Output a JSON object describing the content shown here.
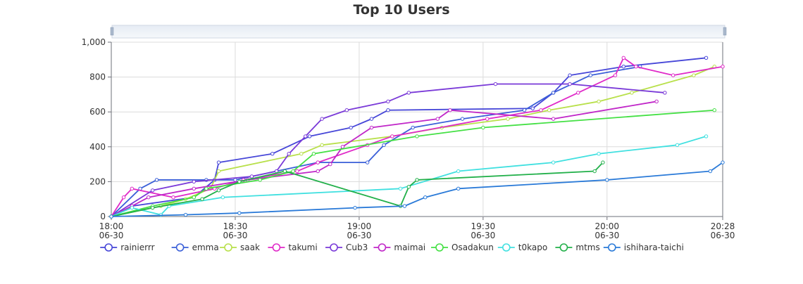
{
  "chart_data": {
    "type": "line",
    "title": "Top 10 Users",
    "xlabel": "",
    "ylabel": "",
    "ylim": [
      0,
      1000
    ],
    "xlim": [
      "06-30 18:00",
      "06-30 20:28"
    ],
    "grid": true,
    "legend_position": "bottom",
    "y_ticks": [
      "0",
      "200",
      "400",
      "600",
      "800",
      "1,000"
    ],
    "x_ticks": [
      {
        "time": "18:00",
        "date": "06-30"
      },
      {
        "time": "18:30",
        "date": "06-30"
      },
      {
        "time": "19:00",
        "date": "06-30"
      },
      {
        "time": "19:30",
        "date": "06-30"
      },
      {
        "time": "20:00",
        "date": "06-30"
      },
      {
        "time": "20:28",
        "date": "06-30"
      }
    ],
    "series": [
      {
        "name": "rainierrr",
        "color": "#4646d8",
        "points": [
          [
            "18:00",
            0
          ],
          [
            "18:05",
            60
          ],
          [
            "18:20",
            110
          ],
          [
            "18:25",
            210
          ],
          [
            "18:26",
            310
          ],
          [
            "18:39",
            360
          ],
          [
            "18:48",
            460
          ],
          [
            "18:58",
            510
          ],
          [
            "19:03",
            560
          ],
          [
            "19:07",
            610
          ],
          [
            "19:42",
            620
          ],
          [
            "19:47",
            710
          ],
          [
            "19:51",
            810
          ],
          [
            "20:04",
            860
          ],
          [
            "20:24",
            910
          ]
        ]
      },
      {
        "name": "emma",
        "color": "#3a5fd8",
        "points": [
          [
            "18:00",
            0
          ],
          [
            "18:07",
            160
          ],
          [
            "18:11",
            210
          ],
          [
            "18:23",
            210
          ],
          [
            "18:30",
            210
          ],
          [
            "18:40",
            260
          ],
          [
            "18:50",
            310
          ],
          [
            "19:02",
            310
          ],
          [
            "19:06",
            410
          ],
          [
            "19:13",
            510
          ],
          [
            "19:25",
            560
          ],
          [
            "19:40",
            610
          ],
          [
            "19:47",
            710
          ],
          [
            "19:56",
            810
          ],
          [
            "20:08",
            860
          ]
        ]
      },
      {
        "name": "saak",
        "color": "#b8e04a",
        "points": [
          [
            "18:00",
            0
          ],
          [
            "18:12",
            60
          ],
          [
            "18:18",
            100
          ],
          [
            "18:24",
            160
          ],
          [
            "18:26",
            260
          ],
          [
            "18:46",
            360
          ],
          [
            "18:51",
            410
          ],
          [
            "19:08",
            460
          ],
          [
            "19:20",
            510
          ],
          [
            "19:36",
            560
          ],
          [
            "19:46",
            610
          ],
          [
            "19:58",
            660
          ],
          [
            "20:06",
            710
          ],
          [
            "20:21",
            810
          ],
          [
            "20:26",
            860
          ]
        ]
      },
      {
        "name": "takumi",
        "color": "#e02ac8",
        "points": [
          [
            "18:00",
            0
          ],
          [
            "18:03",
            110
          ],
          [
            "18:05",
            160
          ],
          [
            "18:15",
            110
          ],
          [
            "18:25",
            160
          ],
          [
            "18:32",
            210
          ],
          [
            "18:45",
            260
          ],
          [
            "18:50",
            310
          ],
          [
            "19:02",
            410
          ],
          [
            "19:08",
            460
          ],
          [
            "19:31",
            560
          ],
          [
            "19:44",
            610
          ],
          [
            "19:53",
            710
          ],
          [
            "20:02",
            810
          ],
          [
            "20:04",
            910
          ],
          [
            "20:07",
            860
          ],
          [
            "20:16",
            810
          ],
          [
            "20:28",
            860
          ]
        ]
      },
      {
        "name": "Cub3",
        "color": "#7a3ad8",
        "points": [
          [
            "18:00",
            0
          ],
          [
            "18:10",
            150
          ],
          [
            "18:20",
            200
          ],
          [
            "18:34",
            230
          ],
          [
            "18:40",
            260
          ],
          [
            "18:43",
            360
          ],
          [
            "18:47",
            460
          ],
          [
            "18:51",
            560
          ],
          [
            "18:57",
            610
          ],
          [
            "19:07",
            660
          ],
          [
            "19:12",
            710
          ],
          [
            "19:33",
            760
          ],
          [
            "19:51",
            760
          ],
          [
            "20:14",
            710
          ]
        ]
      },
      {
        "name": "maimai",
        "color": "#c026c8",
        "points": [
          [
            "18:00",
            0
          ],
          [
            "18:05",
            60
          ],
          [
            "18:09",
            110
          ],
          [
            "18:20",
            160
          ],
          [
            "18:33",
            210
          ],
          [
            "18:50",
            260
          ],
          [
            "18:53",
            300
          ],
          [
            "18:56",
            400
          ],
          [
            "19:03",
            510
          ],
          [
            "19:19",
            560
          ],
          [
            "19:22",
            610
          ],
          [
            "19:47",
            560
          ],
          [
            "20:12",
            660
          ]
        ]
      },
      {
        "name": "Osadakun",
        "color": "#44e044",
        "points": [
          [
            "18:00",
            0
          ],
          [
            "18:10",
            60
          ],
          [
            "18:20",
            110
          ],
          [
            "18:23",
            160
          ],
          [
            "18:36",
            210
          ],
          [
            "18:44",
            260
          ],
          [
            "18:49",
            360
          ],
          [
            "19:14",
            460
          ],
          [
            "19:30",
            510
          ],
          [
            "20:26",
            610
          ]
        ]
      },
      {
        "name": "t0kapo",
        "color": "#40e0e0",
        "points": [
          [
            "18:00",
            0
          ],
          [
            "18:05",
            50
          ],
          [
            "18:12",
            10
          ],
          [
            "18:14",
            60
          ],
          [
            "18:27",
            110
          ],
          [
            "19:10",
            160
          ],
          [
            "19:24",
            260
          ],
          [
            "19:47",
            310
          ],
          [
            "19:58",
            360
          ],
          [
            "20:17",
            410
          ],
          [
            "20:24",
            460
          ]
        ]
      },
      {
        "name": "mtms",
        "color": "#22b04a",
        "points": [
          [
            "18:00",
            0
          ],
          [
            "18:10",
            50
          ],
          [
            "18:22",
            100
          ],
          [
            "18:26",
            150
          ],
          [
            "18:31",
            200
          ],
          [
            "18:42",
            260
          ],
          [
            "19:10",
            60
          ],
          [
            "19:12",
            170
          ],
          [
            "19:14",
            210
          ],
          [
            "19:57",
            260
          ],
          [
            "19:59",
            310
          ]
        ]
      },
      {
        "name": "ishihara-taichi",
        "color": "#2a7ad8",
        "points": [
          [
            "18:00",
            0
          ],
          [
            "18:18",
            10
          ],
          [
            "18:31",
            20
          ],
          [
            "18:59",
            50
          ],
          [
            "19:11",
            60
          ],
          [
            "19:16",
            110
          ],
          [
            "19:24",
            160
          ],
          [
            "20:00",
            210
          ],
          [
            "20:25",
            260
          ],
          [
            "20:28",
            310
          ]
        ]
      }
    ]
  }
}
